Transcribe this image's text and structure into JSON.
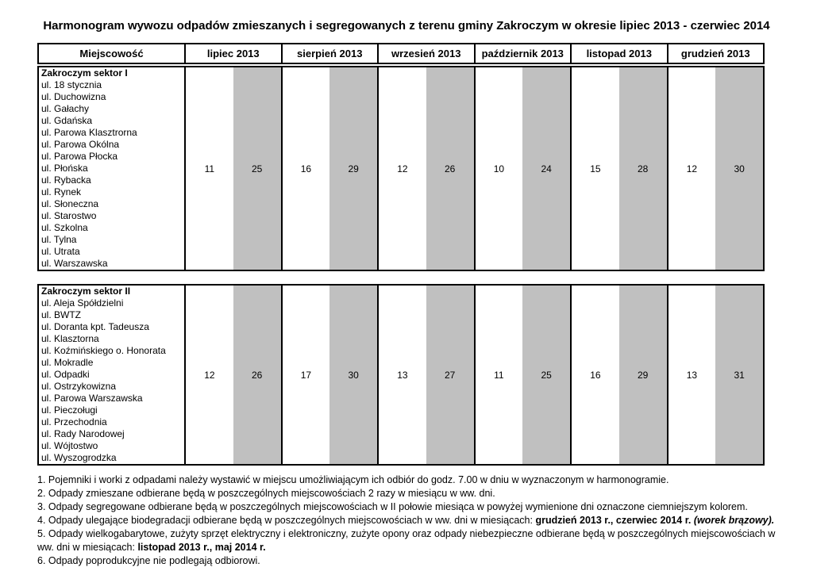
{
  "page": {
    "title": "Harmonogram wywozu odpadów zmieszanych i segregowanych z terenu gminy Zakroczym w okresie lipiec 2013 - czerwiec 2014"
  },
  "table": {
    "colors": {
      "shaded_cell": "#c0c0c0",
      "border": "#000000"
    },
    "columns": [
      "Miejscowość",
      "lipiec 2013",
      "sierpień 2013",
      "wrzesień 2013",
      "październik 2013",
      "listopad 2013",
      "grudzień 2013"
    ],
    "sections": [
      {
        "name": "Zakroczym sektor I",
        "streets": [
          "ul. 18 stycznia",
          "ul. Duchowizna",
          "ul. Gałachy",
          "ul. Gdańska",
          "ul. Parowa Klasztrorna",
          "ul. Parowa Okólna",
          "ul. Parowa Płocka",
          "ul. Płońska",
          "ul. Rybacka",
          "ul. Rynek",
          "ul. Słoneczna",
          "ul. Starostwo",
          "ul. Szkolna",
          "ul. Tylna",
          "ul. Utrata",
          "ul. Warszawska"
        ],
        "dates": [
          [
            11,
            25
          ],
          [
            16,
            29
          ],
          [
            12,
            26
          ],
          [
            10,
            24
          ],
          [
            15,
            28
          ],
          [
            12,
            30
          ]
        ]
      },
      {
        "name": "Zakroczym sektor II",
        "streets": [
          "ul. Aleja Spółdzielni",
          "ul. BWTZ",
          "ul. Doranta kpt. Tadeusza",
          "ul. Klasztorna",
          "ul. Koźmińskiego o. Honorata",
          "ul. Mokradle",
          "ul. Odpadki",
          "ul. Ostrzykowizna",
          "ul. Parowa Warszawska",
          "ul. Pieczoługi",
          "ul. Przechodnia",
          "ul. Rady Narodowej",
          "ul. Wójtostwo",
          "ul. Wyszogrodzka"
        ],
        "dates": [
          [
            12,
            26
          ],
          [
            17,
            30
          ],
          [
            13,
            27
          ],
          [
            11,
            25
          ],
          [
            16,
            29
          ],
          [
            13,
            31
          ]
        ]
      }
    ]
  },
  "notes": [
    {
      "segments": [
        {
          "style": "normal",
          "text": "1. Pojemniki i worki z odpadami należy wystawić w miejscu umożliwiającym ich odbiór do godz. 7.00 w dniu w wyznaczonym w harmonogramie."
        }
      ]
    },
    {
      "segments": [
        {
          "style": "normal",
          "text": "2. Odpady zmieszane odbierane będą w poszczególnych miejscowościach 2 razy w miesiącu w ww. dni."
        }
      ]
    },
    {
      "segments": [
        {
          "style": "normal",
          "text": "3. Odpady segregowane odbierane będą w poszczególnych miejscowościach w II połowie miesiąca w powyżej wymienione dni oznaczone ciemniejszym kolorem."
        }
      ]
    },
    {
      "segments": [
        {
          "style": "normal",
          "text": "4. Odpady ulegające biodegradacji odbierane będą w poszczególnych miejscowościach w ww. dni w miesiącach: "
        },
        {
          "style": "bold",
          "text": "grudzień 2013 r., czerwiec 2014 r. "
        },
        {
          "style": "bold_italic",
          "text": "(worek brązowy)."
        }
      ]
    },
    {
      "segments": [
        {
          "style": "normal",
          "text": "5. Odpady wielkogabarytowe, zużyty sprzęt elektryczny i elektroniczny, zużyte opony oraz odpady niebezpieczne odbierane będą w poszczególnych miejscowościach w ww. dni w miesiącach: "
        },
        {
          "style": "bold",
          "text": "listopad 2013 r., maj 2014 r."
        }
      ]
    },
    {
      "segments": [
        {
          "style": "normal",
          "text": "6. Odpady poprodukcyjne nie podlegają odbiorowi."
        }
      ]
    }
  ]
}
